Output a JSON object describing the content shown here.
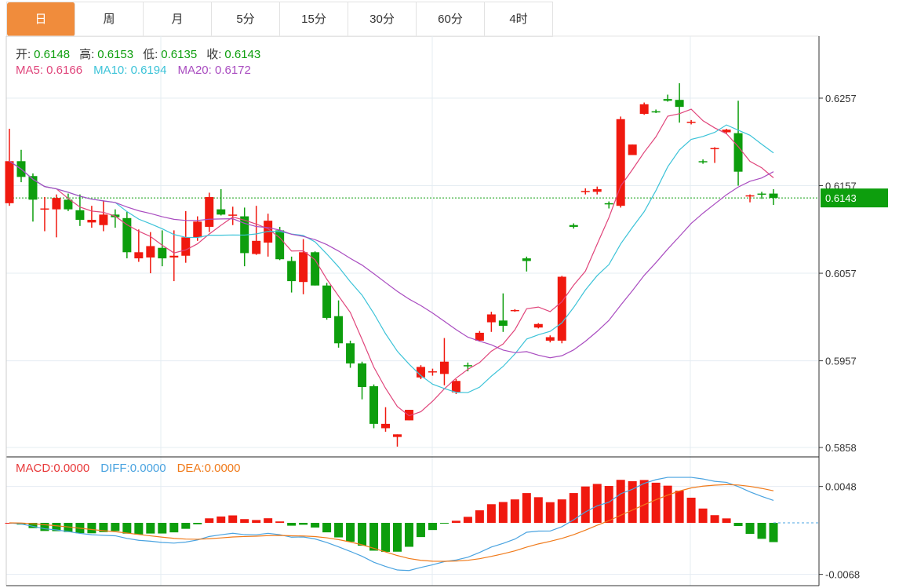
{
  "tabs": [
    "日",
    "周",
    "月",
    "5分",
    "15分",
    "30分",
    "60分",
    "4时"
  ],
  "active_tab": 0,
  "ohlc": {
    "open_label": "开:",
    "open": "0.6148",
    "high_label": "高:",
    "high": "0.6153",
    "low_label": "低:",
    "low": "0.6135",
    "close_label": "收:",
    "close": "0.6143"
  },
  "ma": {
    "ma5": "MA5: 0.6166",
    "ma10": "MA10: 0.6194",
    "ma20": "MA20: 0.6172"
  },
  "macd_info": {
    "macd": "MACD:0.0000",
    "diff": "DIFF:0.0000",
    "dea": "DEA:0.0000"
  },
  "colors": {
    "up": "#f0190f",
    "down": "#0d9e0d",
    "ma5": "#e0457b",
    "ma10": "#3cc3d8",
    "ma20": "#a94cc0",
    "diff": "#4aa3e0",
    "dea": "#f07a1a",
    "tab_active": "#f08c3c"
  },
  "chart_data": {
    "type": "candlestick",
    "price_axis": {
      "ticks": [
        "0.6257",
        "0.6157",
        "0.6057",
        "0.5957",
        "0.5858"
      ],
      "range": [
        0.5846,
        0.633
      ]
    },
    "last_price": "0.6143",
    "macd_axis": {
      "ticks": [
        "0.0048",
        "-0.0068"
      ],
      "range": [
        -0.0082,
        0.0062
      ]
    },
    "candles": [
      [
        0.6137,
        0.6185,
        0.6222,
        0.6134
      ],
      [
        0.6185,
        0.6167,
        0.6198,
        0.6161
      ],
      [
        0.6168,
        0.6141,
        0.6171,
        0.6116
      ],
      [
        0.613,
        0.6131,
        0.6144,
        0.6105
      ],
      [
        0.613,
        0.6143,
        0.6147,
        0.6098
      ],
      [
        0.6141,
        0.613,
        0.6148,
        0.6128
      ],
      [
        0.6129,
        0.6118,
        0.6147,
        0.6111
      ],
      [
        0.6115,
        0.6118,
        0.6134,
        0.6109
      ],
      [
        0.6112,
        0.6124,
        0.614,
        0.6105
      ],
      [
        0.6124,
        0.6121,
        0.613,
        0.6109
      ],
      [
        0.612,
        0.6081,
        0.6127,
        0.6074
      ],
      [
        0.6074,
        0.6081,
        0.6107,
        0.607
      ],
      [
        0.6075,
        0.6088,
        0.6104,
        0.6057
      ],
      [
        0.6086,
        0.6074,
        0.6106,
        0.6065
      ],
      [
        0.6075,
        0.6077,
        0.6106,
        0.6048
      ],
      [
        0.6077,
        0.6098,
        0.6128,
        0.6069
      ],
      [
        0.6098,
        0.6116,
        0.6122,
        0.6094
      ],
      [
        0.611,
        0.6144,
        0.6149,
        0.6104
      ],
      [
        0.613,
        0.6124,
        0.6153,
        0.6123
      ],
      [
        0.6123,
        0.6124,
        0.6133,
        0.6112
      ],
      [
        0.6122,
        0.608,
        0.6132,
        0.6065
      ],
      [
        0.6079,
        0.6094,
        0.6134,
        0.6078
      ],
      [
        0.6092,
        0.6117,
        0.6125,
        0.6076
      ],
      [
        0.6106,
        0.6073,
        0.611,
        0.6072
      ],
      [
        0.6071,
        0.6048,
        0.6076,
        0.6035
      ],
      [
        0.6047,
        0.6081,
        0.6096,
        0.6033
      ],
      [
        0.6081,
        0.6043,
        0.6082,
        0.6043
      ],
      [
        0.6043,
        0.6006,
        0.6046,
        0.6004
      ],
      [
        0.6008,
        0.5977,
        0.6026,
        0.5972
      ],
      [
        0.5977,
        0.5954,
        0.598,
        0.5949
      ],
      [
        0.5954,
        0.5927,
        0.5956,
        0.5913
      ],
      [
        0.5928,
        0.5885,
        0.593,
        0.588
      ],
      [
        0.588,
        0.5885,
        0.5904,
        0.5876
      ],
      [
        0.587,
        0.5873,
        0.5873,
        0.5859
      ],
      [
        0.5889,
        0.5901,
        0.5901,
        0.5889
      ],
      [
        0.5938,
        0.595,
        0.5952,
        0.5936
      ],
      [
        0.5944,
        0.5945,
        0.5948,
        0.594
      ],
      [
        0.5942,
        0.5956,
        0.5983,
        0.5929
      ],
      [
        0.5921,
        0.5934,
        0.5936,
        0.5919
      ],
      [
        0.5952,
        0.5951,
        0.5955,
        0.5945
      ],
      [
        0.598,
        0.5989,
        0.5991,
        0.5979
      ],
      [
        0.6001,
        0.601,
        0.6013,
        0.599
      ],
      [
        0.6003,
        0.5997,
        0.6034,
        0.599
      ],
      [
        0.6014,
        0.6015,
        0.6016,
        0.6013
      ],
      [
        0.6074,
        0.6071,
        0.6076,
        0.6059
      ],
      [
        0.5995,
        0.5999,
        0.6,
        0.5994
      ],
      [
        0.598,
        0.5984,
        0.5986,
        0.5978
      ],
      [
        0.598,
        0.6053,
        0.6054,
        0.5977
      ],
      [
        0.6112,
        0.611,
        0.6114,
        0.6108
      ],
      [
        0.615,
        0.6151,
        0.6154,
        0.6147
      ],
      [
        0.615,
        0.6153,
        0.6156,
        0.6147
      ],
      [
        0.6137,
        0.6136,
        0.6139,
        0.6131
      ],
      [
        0.6134,
        0.6233,
        0.6236,
        0.6132
      ],
      [
        0.6192,
        0.6204,
        0.6204,
        0.6192
      ],
      [
        0.6239,
        0.625,
        0.6252,
        0.6238
      ],
      [
        0.6242,
        0.6241,
        0.6244,
        0.624
      ],
      [
        0.6256,
        0.6254,
        0.6261,
        0.6253
      ],
      [
        0.6255,
        0.6247,
        0.6274,
        0.6229
      ],
      [
        0.6229,
        0.623,
        0.6232,
        0.6227
      ],
      [
        0.6185,
        0.6184,
        0.6187,
        0.6182
      ],
      [
        0.6199,
        0.62,
        0.6201,
        0.6183
      ],
      [
        0.6218,
        0.6221,
        0.6222,
        0.6216
      ],
      [
        0.6217,
        0.6173,
        0.6254,
        0.6157
      ],
      [
        0.6145,
        0.6146,
        0.6147,
        0.6138
      ],
      [
        0.6148,
        0.6147,
        0.615,
        0.6142
      ],
      [
        0.6148,
        0.6143,
        0.6153,
        0.6135
      ]
    ]
  }
}
